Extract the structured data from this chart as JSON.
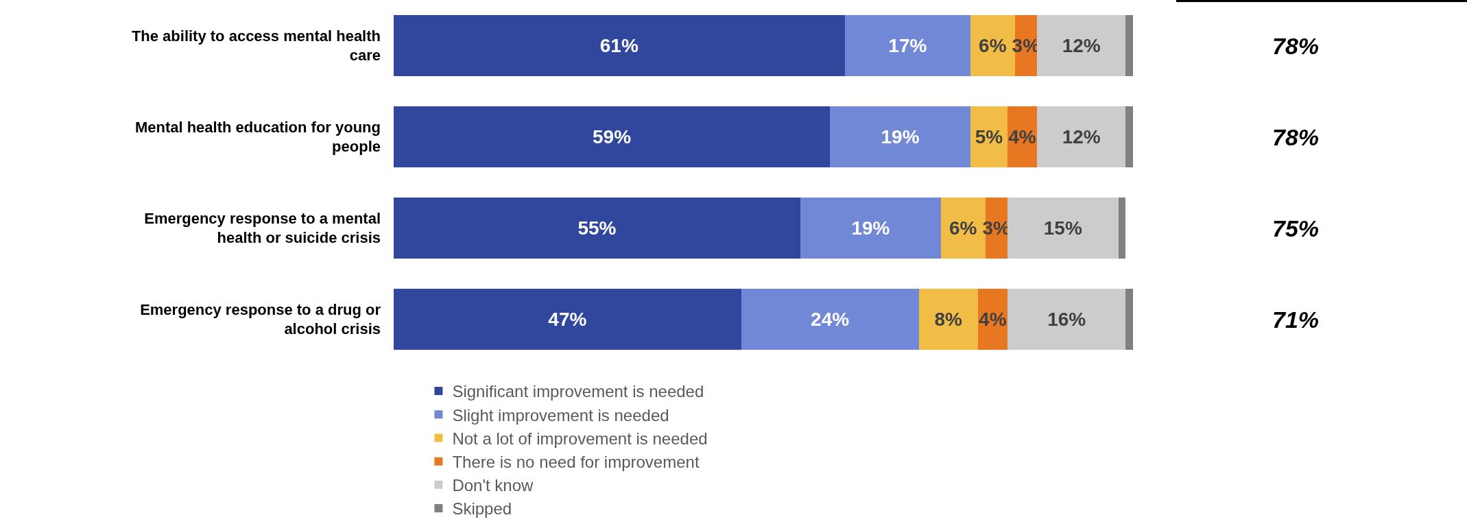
{
  "chart_data": {
    "type": "bar",
    "orientation": "horizontal",
    "stacked": true,
    "categories": [
      "The ability to access mental health care",
      "Mental health education for young people",
      "Emergency response to a mental health or suicide crisis",
      "Emergency response to a drug or alcohol crisis"
    ],
    "series": [
      {
        "name": "Significant improvement is needed",
        "color": "#31479e",
        "values": [
          61,
          59,
          55,
          47
        ],
        "value_labels": [
          "61%",
          "59%",
          "55%",
          "47%"
        ]
      },
      {
        "name": "Slight improvement is needed",
        "color": "#7088d6",
        "values": [
          17,
          19,
          19,
          24
        ],
        "value_labels": [
          "17%",
          "19%",
          "19%",
          "24%"
        ]
      },
      {
        "name": "Not a lot of improvement is needed",
        "color": "#f2bd47",
        "values": [
          6,
          5,
          6,
          8
        ],
        "value_labels": [
          "6%",
          "5%",
          "6%",
          "8%"
        ]
      },
      {
        "name": "There is no need for improvement",
        "color": "#e87722",
        "values": [
          3,
          4,
          3,
          4
        ],
        "value_labels": [
          "3%",
          "4%",
          "3%",
          "4%"
        ]
      },
      {
        "name": "Don't know",
        "color": "#cccccc",
        "values": [
          12,
          12,
          15,
          16
        ],
        "value_labels": [
          "12%",
          "12%",
          "15%",
          "16%"
        ]
      },
      {
        "name": "Skipped",
        "color": "#808080",
        "values": [
          1,
          1,
          1,
          1
        ]
      }
    ],
    "tick_labels": "y",
    "grid": false,
    "legend": "bottom",
    "annotations": [
      "78%",
      "78%",
      "75%",
      "71%"
    ]
  }
}
